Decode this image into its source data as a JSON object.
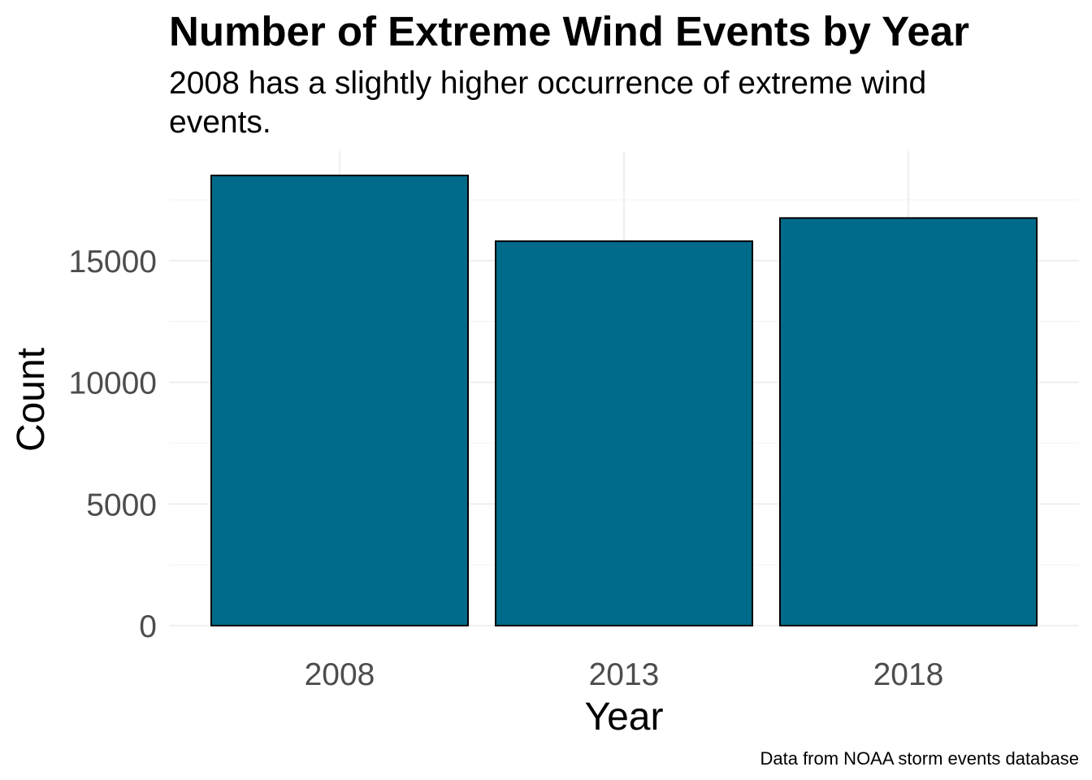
{
  "chart_data": {
    "type": "bar",
    "title": "Number of Extreme Wind Events by Year",
    "subtitle": [
      "2008 has a slightly higher occurrence of extreme wind",
      "events."
    ],
    "caption": "Data from NOAA storm events database",
    "xlabel": "Year",
    "ylabel": "Count",
    "categories": [
      "2008",
      "2013",
      "2018"
    ],
    "values": [
      18500,
      15800,
      16750
    ],
    "ylim": [
      0,
      19500
    ],
    "yticks": [
      0,
      5000,
      10000,
      15000
    ],
    "ytick_labels": [
      "0",
      "5000",
      "10000",
      "15000"
    ],
    "bar_color": "#006A8A",
    "bar_outline": "#000000",
    "grid": true,
    "legend": "none"
  }
}
